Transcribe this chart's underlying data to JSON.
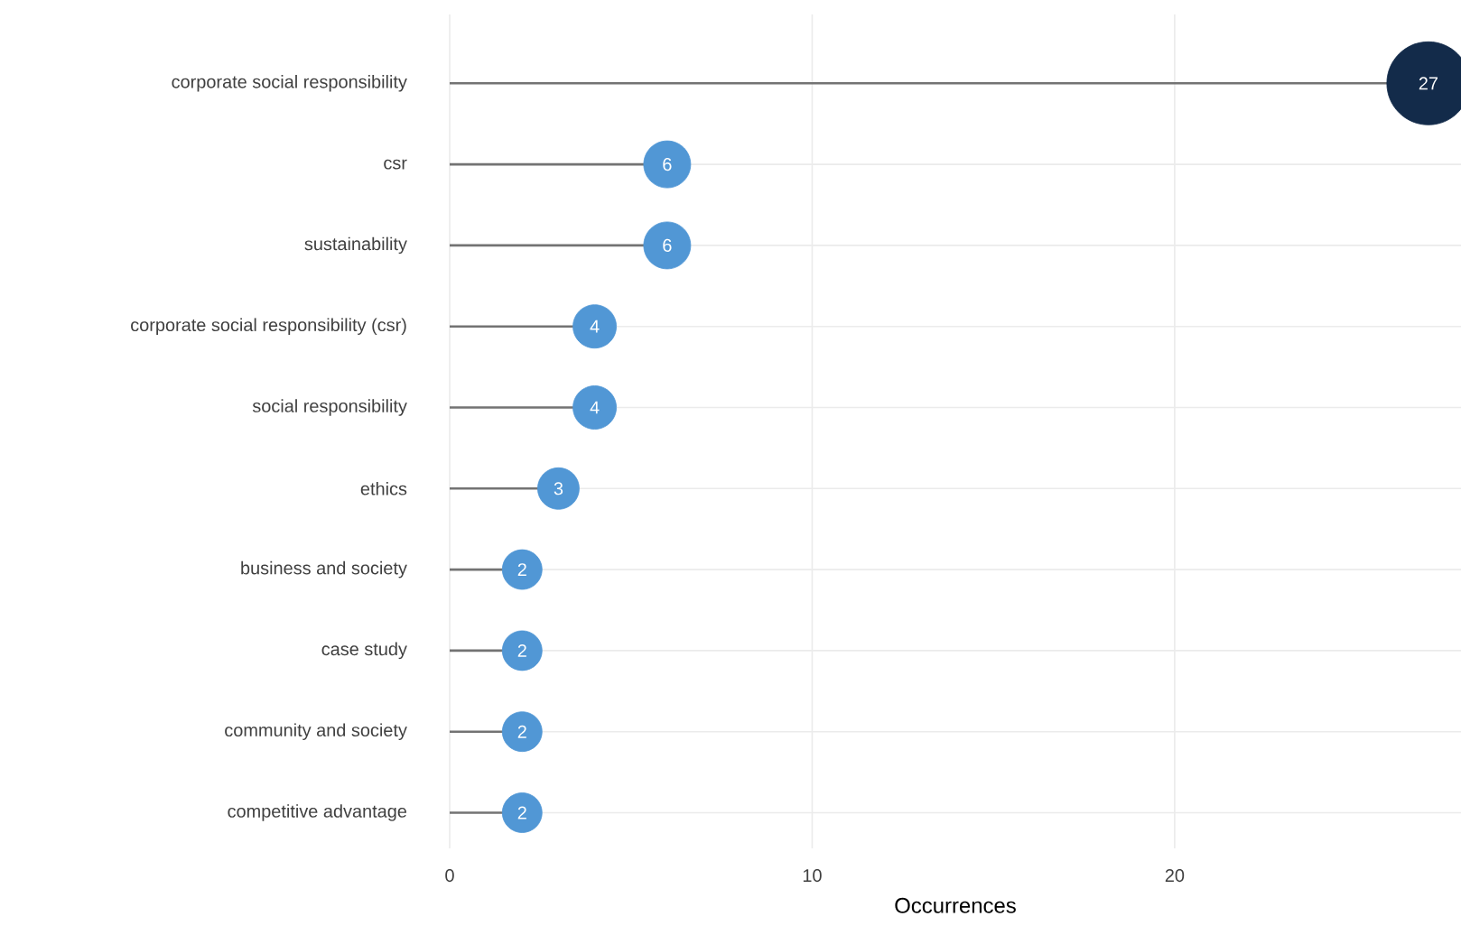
{
  "chart_data": {
    "type": "lollipop",
    "orientation": "horizontal",
    "xlabel": "Occurrences",
    "categories": [
      "corporate social responsibility",
      "csr",
      "sustainability",
      "corporate social responsibility (csr)",
      "social responsibility",
      "ethics",
      "business and society",
      "case study",
      "community and society",
      "competitive advantage"
    ],
    "values": [
      27,
      6,
      6,
      4,
      4,
      3,
      2,
      2,
      2,
      2
    ],
    "value_labels": [
      "27",
      "6",
      "6",
      "4",
      "4",
      "3",
      "2",
      "2",
      "2",
      "2"
    ],
    "sizes": [
      1,
      0.32,
      0.32,
      0.27,
      0.27,
      0.25,
      0.23,
      0.23,
      0.23,
      0.23
    ],
    "colors": [
      "#132b4a",
      "#5197d5",
      "#5197d5",
      "#5197d5",
      "#5197d5",
      "#5197d5",
      "#5197d5",
      "#5197d5",
      "#5197d5",
      "#5197d5"
    ],
    "xlim": [
      0,
      27.9
    ],
    "xticks": [
      0,
      10,
      20
    ],
    "grid": true
  }
}
